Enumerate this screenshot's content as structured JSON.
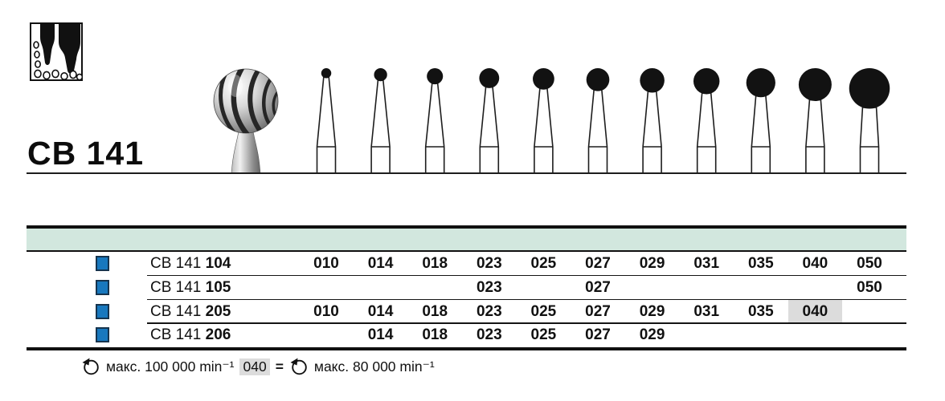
{
  "branding": {
    "product_code": "CB 141"
  },
  "icons": {
    "tooth_box": "tooth-diagram-icon",
    "rotation": "rotation-direction-icon"
  },
  "figure_row": {
    "description": "round carbide bur silhouettes, head diameter grows with ISO size",
    "sizes": [
      "010",
      "014",
      "018",
      "023",
      "025",
      "027",
      "029",
      "031",
      "035",
      "040",
      "050"
    ]
  },
  "chart_data": {
    "type": "table",
    "title": "CB 141 available ISO sizes per shank variant",
    "columns": [
      "010",
      "014",
      "018",
      "023",
      "025",
      "027",
      "029",
      "031",
      "035",
      "040",
      "050"
    ],
    "rows": [
      {
        "series": "CB 141",
        "variant": "104",
        "available": [
          "010",
          "014",
          "018",
          "023",
          "025",
          "027",
          "029",
          "031",
          "035",
          "040",
          "050"
        ],
        "highlighted": []
      },
      {
        "series": "CB 141",
        "variant": "105",
        "available": [
          "023",
          "027",
          "050"
        ],
        "highlighted": []
      },
      {
        "series": "CB 141",
        "variant": "205",
        "available": [
          "010",
          "014",
          "018",
          "023",
          "025",
          "027",
          "029",
          "031",
          "035",
          "040"
        ],
        "highlighted": [
          "040"
        ]
      },
      {
        "series": "CB 141",
        "variant": "206",
        "available": [
          "014",
          "018",
          "023",
          "025",
          "027",
          "029"
        ],
        "highlighted": []
      }
    ]
  },
  "footer": {
    "max_speed_note_1": "макс. 100 000 min⁻¹",
    "highlighted_size": "040",
    "equals": "=",
    "max_speed_note_2": "макс. 80 000 min⁻¹"
  },
  "colors": {
    "header_band": "#d2e7de",
    "square_blue": "#1878be",
    "square_border": "#16344e",
    "highlight_gray": "#dcdcdc",
    "ink": "#111111"
  }
}
